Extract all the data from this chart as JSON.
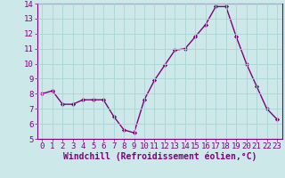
{
  "x": [
    0,
    1,
    2,
    3,
    4,
    5,
    6,
    7,
    8,
    9,
    10,
    11,
    12,
    13,
    14,
    15,
    16,
    17,
    18,
    19,
    20,
    21,
    22,
    23
  ],
  "y": [
    8.0,
    8.2,
    7.3,
    7.3,
    7.6,
    7.6,
    7.6,
    6.5,
    5.6,
    5.4,
    7.6,
    8.9,
    9.9,
    10.9,
    11.0,
    11.8,
    12.6,
    13.8,
    13.8,
    11.8,
    10.0,
    8.5,
    7.0,
    6.3
  ],
  "line_color": "#800080",
  "marker": "D",
  "marker_size": 2.2,
  "bg_color": "#cce8e8",
  "grid_color": "#aad4d4",
  "xlabel": "Windchill (Refroidissement éolien,°C)",
  "xlabel_color": "#800080",
  "tick_color": "#800080",
  "ylim": [
    5,
    14
  ],
  "xlim": [
    -0.5,
    23.5
  ],
  "yticks": [
    5,
    6,
    7,
    8,
    9,
    10,
    11,
    12,
    13,
    14
  ],
  "xticks": [
    0,
    1,
    2,
    3,
    4,
    5,
    6,
    7,
    8,
    9,
    10,
    11,
    12,
    13,
    14,
    15,
    16,
    17,
    18,
    19,
    20,
    21,
    22,
    23
  ],
  "linewidth": 1.0,
  "tick_fontsize": 6.5,
  "xlabel_fontsize": 7.0
}
